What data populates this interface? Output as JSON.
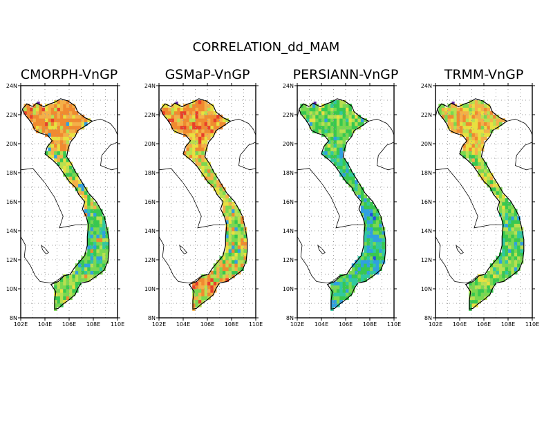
{
  "figure": {
    "title": "CORRELATION_dd_MAM"
  },
  "axes": {
    "lon_labels": [
      "102E",
      "104E",
      "106E",
      "108E",
      "110E"
    ],
    "lat_labels": [
      "8N",
      "10N",
      "12N",
      "14N",
      "16N",
      "18N",
      "20N",
      "22N",
      "24N"
    ],
    "lon_range": [
      102,
      110
    ],
    "lat_range": [
      8,
      24
    ],
    "grid": "dotted"
  },
  "panels": [
    {
      "title": "CMORPH-VnGP",
      "dominant": "orange",
      "north_scheme": "hot",
      "south_scheme": "mixed"
    },
    {
      "title": "GSMaP-VnGP",
      "dominant": "orange",
      "north_scheme": "hot",
      "south_scheme": "mixed_hot"
    },
    {
      "title": "PERSIANN-VnGP",
      "dominant": "green",
      "north_scheme": "green",
      "south_scheme": "cool"
    },
    {
      "title": "TRMM-VnGP",
      "dominant": "yellow-green",
      "north_scheme": "warm",
      "south_scheme": "green"
    }
  ],
  "colors": {
    "red": "#e8402a",
    "orange": "#f08a30",
    "light_orange": "#f4b048",
    "yellow": "#e8e040",
    "yellow_green": "#b8e050",
    "light_green": "#7ad850",
    "green": "#38c850",
    "teal": "#30c8a0",
    "cyan": "#30a0e0",
    "blue": "#2050e0",
    "purple": "#6020a0"
  }
}
